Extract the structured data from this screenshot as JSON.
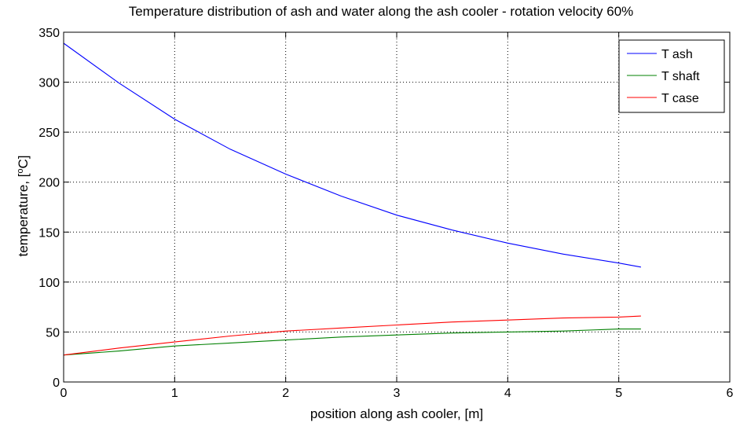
{
  "chart_data": {
    "type": "line",
    "title": "Temperature distribution of ash and water along the ash cooler - rotation velocity 60%",
    "xlabel": "position along ash cooler, [m]",
    "ylabel_prefix": "temperature, [",
    "ylabel_sup": "o",
    "ylabel_suffix": "C]",
    "xlim": [
      0,
      6
    ],
    "ylim": [
      0,
      350
    ],
    "xticks": [
      0,
      1,
      2,
      3,
      4,
      5,
      6
    ],
    "yticks": [
      0,
      50,
      100,
      150,
      200,
      250,
      300,
      350
    ],
    "grid": true,
    "legend_position": "top-right",
    "x": [
      0,
      0.5,
      1,
      1.5,
      2,
      2.5,
      3,
      3.5,
      4,
      4.5,
      5,
      5.2
    ],
    "series": [
      {
        "name": "T ash",
        "color": "#0000ff",
        "values": [
          339,
          299,
          263,
          233,
          208,
          186,
          167,
          152,
          139,
          128,
          119,
          115
        ]
      },
      {
        "name": "T shaft",
        "color": "#008000",
        "values": [
          27,
          31,
          36,
          39,
          42,
          45,
          47,
          49,
          50,
          51,
          53,
          53
        ]
      },
      {
        "name": "T case",
        "color": "#ff0000",
        "values": [
          27,
          34,
          40,
          46,
          51,
          54,
          57,
          60,
          62,
          64,
          65,
          66
        ]
      }
    ]
  }
}
